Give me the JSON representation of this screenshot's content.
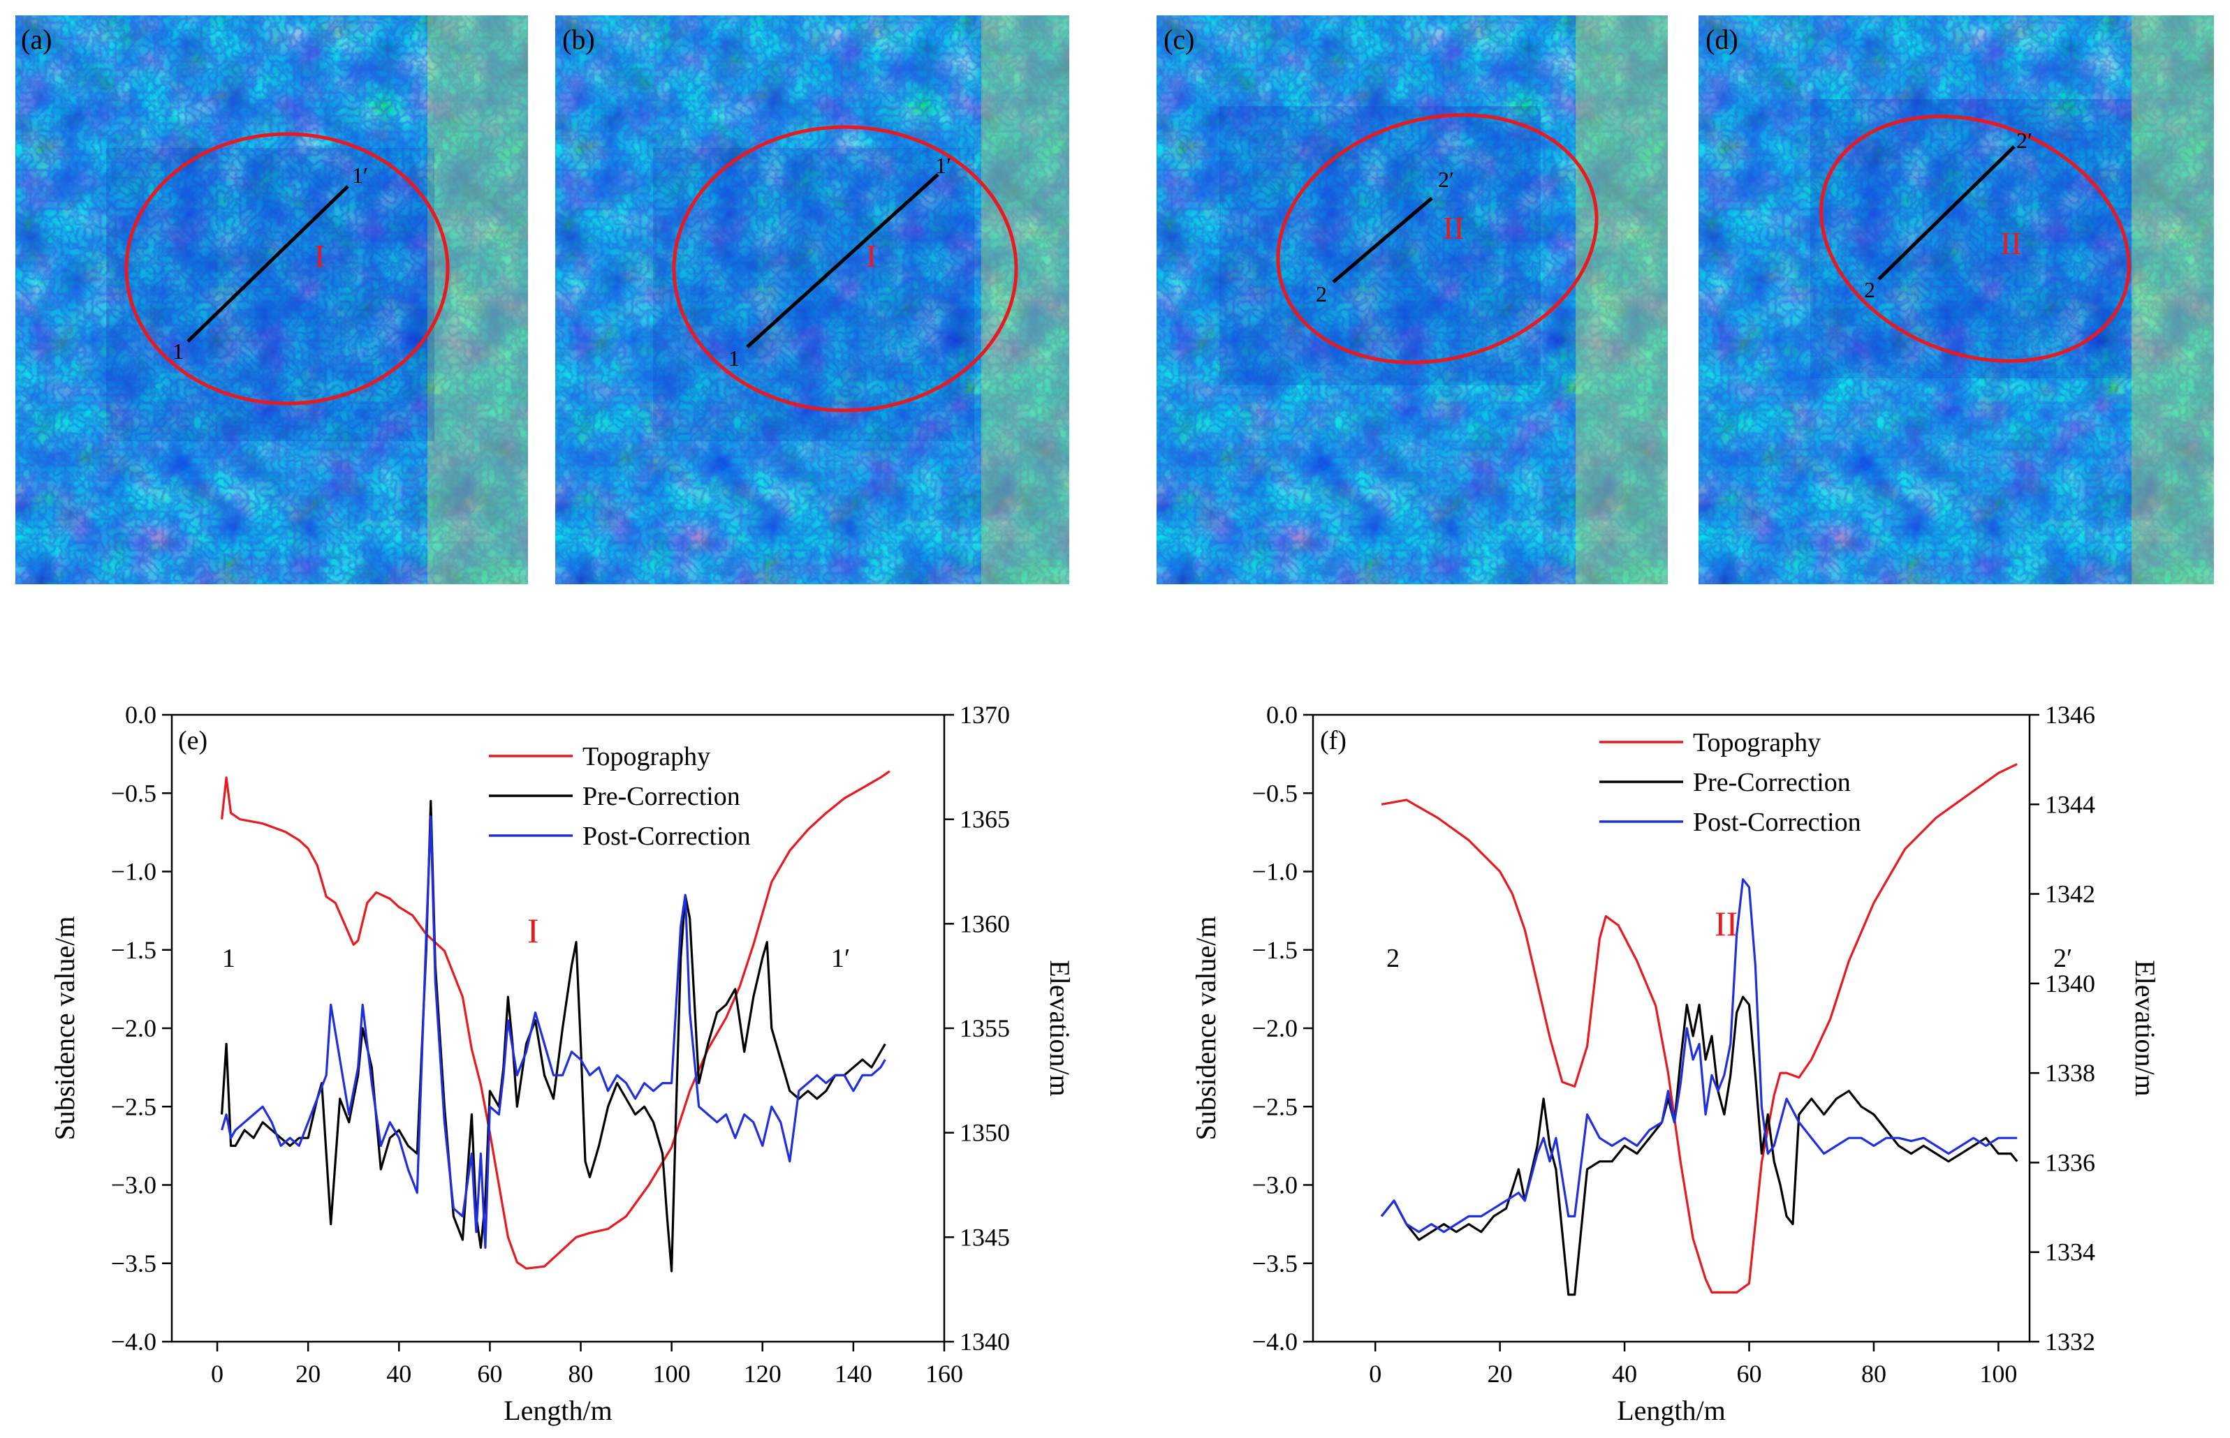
{
  "colors": {
    "topography": "#e8191f",
    "pre_correction": "#000000",
    "post_correction": "#1f2fe0",
    "ellipse": "#e8191f",
    "profile_line": "#000000",
    "map_low": "#0b2fc8",
    "map_mid": "#1e8fe6",
    "map_high": "#2fd3d8",
    "map_top": "#d9ef3a"
  },
  "maps": [
    {
      "panel_label": "(a)",
      "zone_label": "I",
      "start_label": "1",
      "end_label": "1′"
    },
    {
      "panel_label": "(b)",
      "zone_label": "I",
      "start_label": "1",
      "end_label": "1′"
    },
    {
      "panel_label": "(c)",
      "zone_label": "II",
      "start_label": "2",
      "end_label": "2′"
    },
    {
      "panel_label": "(d)",
      "zone_label": "II",
      "start_label": "2",
      "end_label": "2′"
    }
  ],
  "chart_data": [
    {
      "type": "line",
      "panel_label": "(e)",
      "xlabel": "Length/m",
      "ylabel": "Subsidence value/m",
      "y2label": "Elevation/m",
      "xlim": [
        -10,
        160
      ],
      "xticks": [
        0,
        20,
        40,
        60,
        80,
        100,
        120,
        140,
        160
      ],
      "ylim": [
        -4.0,
        0.0
      ],
      "yticks": [
        -4.0,
        -3.5,
        -3.0,
        -2.5,
        -2.0,
        -1.5,
        -1.0,
        -0.5,
        0.0
      ],
      "y2lim": [
        1340,
        1370
      ],
      "y2ticks": [
        1340,
        1345,
        1350,
        1355,
        1360,
        1365,
        1370
      ],
      "zone_label": "I",
      "start_label": "1",
      "end_label": "1′",
      "legend": {
        "position": "top-center",
        "entries": [
          "Topography",
          "Pre-Correction",
          "Post-Correction"
        ]
      },
      "series": [
        {
          "name": "Topography",
          "axis": "right",
          "x": [
            1,
            2,
            3,
            5,
            10,
            15,
            18,
            20,
            22,
            24,
            26,
            28,
            30,
            31,
            33,
            35,
            38,
            40,
            43,
            46,
            50,
            54,
            56,
            58,
            60,
            62,
            64,
            66,
            68,
            72,
            76,
            79,
            82,
            86,
            90,
            95,
            100,
            104,
            108,
            112,
            115,
            118,
            122,
            126,
            130,
            134,
            138,
            142,
            146,
            148
          ],
          "y": [
            1365.0,
            1367.0,
            1365.3,
            1365.0,
            1364.8,
            1364.4,
            1364.0,
            1363.6,
            1362.8,
            1361.3,
            1361.0,
            1360.0,
            1359.0,
            1359.2,
            1361.0,
            1361.5,
            1361.2,
            1360.8,
            1360.4,
            1359.5,
            1358.7,
            1356.5,
            1354.0,
            1352.3,
            1350.0,
            1347.5,
            1345.0,
            1343.8,
            1343.5,
            1343.6,
            1344.4,
            1345.0,
            1345.2,
            1345.4,
            1346.0,
            1347.5,
            1349.3,
            1352.0,
            1354.0,
            1355.5,
            1357.0,
            1359.0,
            1362.0,
            1363.5,
            1364.5,
            1365.3,
            1366.0,
            1366.5,
            1367.0,
            1367.3
          ]
        },
        {
          "name": "Pre-Correction",
          "axis": "left",
          "x": [
            1,
            2,
            3,
            4,
            6,
            8,
            10,
            12,
            14,
            16,
            18,
            20,
            22,
            23,
            25,
            27,
            29,
            31,
            32,
            34,
            36,
            38,
            40,
            42,
            44,
            46,
            47,
            48,
            50,
            52,
            54,
            56,
            57,
            58,
            59,
            60,
            62,
            63,
            64,
            65,
            66,
            68,
            70,
            72,
            74,
            76,
            78,
            79,
            80,
            81,
            82,
            84,
            86,
            88,
            90,
            92,
            94,
            96,
            98,
            99,
            100,
            101,
            102,
            103,
            104,
            106,
            108,
            110,
            112,
            114,
            116,
            118,
            120,
            121,
            122,
            124,
            126,
            128,
            130,
            132,
            134,
            136,
            138,
            140,
            142,
            144,
            146,
            147
          ],
          "y": [
            -2.55,
            -2.1,
            -2.75,
            -2.75,
            -2.65,
            -2.7,
            -2.6,
            -2.65,
            -2.7,
            -2.75,
            -2.7,
            -2.7,
            -2.45,
            -2.35,
            -3.25,
            -2.45,
            -2.6,
            -2.3,
            -2.0,
            -2.25,
            -2.9,
            -2.7,
            -2.65,
            -2.75,
            -2.8,
            -1.5,
            -0.55,
            -1.6,
            -2.5,
            -3.2,
            -3.35,
            -2.55,
            -3.2,
            -3.4,
            -3.1,
            -2.4,
            -2.5,
            -2.25,
            -1.8,
            -2.1,
            -2.5,
            -2.1,
            -1.95,
            -2.3,
            -2.45,
            -2.0,
            -1.6,
            -1.45,
            -2.1,
            -2.85,
            -2.95,
            -2.75,
            -2.5,
            -2.35,
            -2.45,
            -2.55,
            -2.5,
            -2.6,
            -2.8,
            -3.2,
            -3.55,
            -2.5,
            -1.55,
            -1.15,
            -1.3,
            -2.35,
            -2.1,
            -1.9,
            -1.85,
            -1.75,
            -2.15,
            -1.8,
            -1.55,
            -1.45,
            -2.0,
            -2.2,
            -2.4,
            -2.45,
            -2.4,
            -2.45,
            -2.4,
            -2.3,
            -2.3,
            -2.25,
            -2.2,
            -2.25,
            -2.15,
            -2.1
          ]
        },
        {
          "name": "Post-Correction",
          "axis": "left",
          "x": [
            1,
            2,
            3,
            4,
            6,
            8,
            10,
            12,
            14,
            16,
            18,
            20,
            22,
            24,
            25,
            27,
            29,
            31,
            32,
            34,
            36,
            38,
            40,
            42,
            44,
            46,
            47,
            48,
            50,
            52,
            54,
            56,
            57,
            58,
            59,
            60,
            62,
            63,
            64,
            66,
            68,
            70,
            72,
            74,
            76,
            78,
            80,
            82,
            84,
            86,
            88,
            90,
            92,
            94,
            96,
            98,
            100,
            101,
            102,
            103,
            104,
            106,
            108,
            110,
            112,
            114,
            116,
            118,
            120,
            122,
            124,
            126,
            128,
            130,
            132,
            134,
            136,
            138,
            140,
            142,
            144,
            146,
            147
          ],
          "y": [
            -2.65,
            -2.55,
            -2.7,
            -2.65,
            -2.6,
            -2.55,
            -2.5,
            -2.6,
            -2.75,
            -2.7,
            -2.75,
            -2.6,
            -2.45,
            -2.3,
            -1.85,
            -2.2,
            -2.55,
            -2.25,
            -1.85,
            -2.35,
            -2.75,
            -2.6,
            -2.7,
            -2.9,
            -3.05,
            -1.4,
            -0.65,
            -1.7,
            -2.6,
            -3.15,
            -3.2,
            -2.8,
            -3.3,
            -2.8,
            -3.4,
            -2.5,
            -2.55,
            -2.3,
            -1.95,
            -2.3,
            -2.15,
            -1.9,
            -2.1,
            -2.3,
            -2.3,
            -2.15,
            -2.2,
            -2.3,
            -2.25,
            -2.4,
            -2.3,
            -2.35,
            -2.45,
            -2.35,
            -2.4,
            -2.35,
            -2.35,
            -1.85,
            -1.35,
            -1.15,
            -1.9,
            -2.5,
            -2.55,
            -2.6,
            -2.55,
            -2.7,
            -2.55,
            -2.6,
            -2.75,
            -2.5,
            -2.6,
            -2.85,
            -2.4,
            -2.35,
            -2.3,
            -2.35,
            -2.3,
            -2.3,
            -2.4,
            -2.3,
            -2.3,
            -2.25,
            -2.2
          ]
        }
      ]
    },
    {
      "type": "line",
      "panel_label": "(f)",
      "xlabel": "Length/m",
      "ylabel": "Subsidence value/m",
      "y2label": "Elevation/m",
      "xlim": [
        -10,
        105
      ],
      "xticks": [
        0,
        20,
        40,
        60,
        80,
        100
      ],
      "ylim": [
        -4.0,
        0.0
      ],
      "yticks": [
        -4.0,
        -3.5,
        -3.0,
        -2.5,
        -2.0,
        -1.5,
        -1.0,
        -0.5,
        0.0
      ],
      "y2lim": [
        1332,
        1346
      ],
      "y2ticks": [
        1332,
        1334,
        1336,
        1338,
        1340,
        1342,
        1344,
        1346
      ],
      "zone_label": "II",
      "start_label": "2",
      "end_label": "2′",
      "legend": {
        "position": "top-center",
        "entries": [
          "Topography",
          "Pre-Correction",
          "Post-Correction"
        ]
      },
      "series": [
        {
          "name": "Topography",
          "axis": "right",
          "x": [
            1,
            5,
            10,
            15,
            20,
            22,
            24,
            26,
            28,
            29,
            30,
            32,
            34,
            36,
            37,
            39,
            42,
            45,
            47,
            49,
            51,
            53,
            54,
            56,
            58,
            60,
            62,
            64,
            65,
            66,
            68,
            70,
            73,
            76,
            80,
            85,
            90,
            95,
            100,
            103
          ],
          "y": [
            1344.0,
            1344.1,
            1343.7,
            1343.2,
            1342.5,
            1342.0,
            1341.2,
            1340.0,
            1338.8,
            1338.3,
            1337.8,
            1337.7,
            1338.6,
            1341.0,
            1341.5,
            1341.3,
            1340.5,
            1339.5,
            1338.0,
            1336.0,
            1334.3,
            1333.4,
            1333.1,
            1333.1,
            1333.1,
            1333.3,
            1336.0,
            1337.5,
            1338.0,
            1338.0,
            1337.9,
            1338.3,
            1339.2,
            1340.5,
            1341.8,
            1343.0,
            1343.7,
            1344.2,
            1344.7,
            1344.9
          ]
        },
        {
          "name": "Pre-Correction",
          "axis": "left",
          "x": [
            1,
            3,
            5,
            7,
            9,
            11,
            13,
            15,
            17,
            19,
            21,
            23,
            24,
            26,
            27,
            28,
            29,
            31,
            32,
            34,
            36,
            38,
            40,
            42,
            44,
            46,
            47,
            48,
            49,
            50,
            51,
            52,
            53,
            54,
            55,
            56,
            57,
            58,
            59,
            60,
            61,
            62,
            63,
            64,
            65,
            66,
            67,
            68,
            70,
            72,
            74,
            76,
            78,
            80,
            82,
            84,
            86,
            88,
            90,
            92,
            94,
            96,
            98,
            100,
            102,
            103
          ],
          "y": [
            -3.2,
            -3.1,
            -3.25,
            -3.35,
            -3.3,
            -3.25,
            -3.3,
            -3.25,
            -3.3,
            -3.2,
            -3.15,
            -2.9,
            -3.1,
            -2.75,
            -2.45,
            -2.75,
            -2.9,
            -3.7,
            -3.7,
            -2.9,
            -2.85,
            -2.85,
            -2.75,
            -2.8,
            -2.7,
            -2.6,
            -2.45,
            -2.6,
            -2.2,
            -1.85,
            -2.05,
            -1.85,
            -2.2,
            -2.05,
            -2.4,
            -2.55,
            -2.3,
            -1.9,
            -1.8,
            -1.85,
            -2.3,
            -2.8,
            -2.55,
            -2.85,
            -3.0,
            -3.2,
            -3.25,
            -2.55,
            -2.45,
            -2.55,
            -2.45,
            -2.4,
            -2.5,
            -2.55,
            -2.65,
            -2.75,
            -2.8,
            -2.75,
            -2.8,
            -2.85,
            -2.8,
            -2.75,
            -2.7,
            -2.8,
            -2.8,
            -2.85
          ]
        },
        {
          "name": "Post-Correction",
          "axis": "left",
          "x": [
            1,
            3,
            5,
            7,
            9,
            11,
            13,
            15,
            17,
            19,
            21,
            23,
            24,
            26,
            27,
            28,
            29,
            31,
            32,
            34,
            36,
            38,
            40,
            42,
            44,
            46,
            47,
            48,
            49,
            50,
            51,
            52,
            53,
            54,
            55,
            56,
            57,
            58,
            59,
            60,
            61,
            62,
            63,
            64,
            65,
            66,
            68,
            70,
            72,
            74,
            76,
            78,
            80,
            82,
            84,
            86,
            88,
            90,
            92,
            94,
            96,
            98,
            100,
            102,
            103
          ],
          "y": [
            -3.2,
            -3.1,
            -3.25,
            -3.3,
            -3.25,
            -3.3,
            -3.25,
            -3.2,
            -3.2,
            -3.15,
            -3.1,
            -3.05,
            -3.1,
            -2.8,
            -2.7,
            -2.85,
            -2.7,
            -3.2,
            -3.2,
            -2.55,
            -2.7,
            -2.75,
            -2.7,
            -2.75,
            -2.65,
            -2.6,
            -2.4,
            -2.6,
            -2.35,
            -2.0,
            -2.2,
            -2.1,
            -2.55,
            -2.3,
            -2.4,
            -2.3,
            -2.1,
            -1.4,
            -1.05,
            -1.1,
            -1.6,
            -2.5,
            -2.8,
            -2.75,
            -2.6,
            -2.45,
            -2.6,
            -2.7,
            -2.8,
            -2.75,
            -2.7,
            -2.7,
            -2.75,
            -2.7,
            -2.7,
            -2.72,
            -2.7,
            -2.75,
            -2.8,
            -2.75,
            -2.7,
            -2.75,
            -2.7,
            -2.7,
            -2.7
          ]
        }
      ]
    }
  ]
}
